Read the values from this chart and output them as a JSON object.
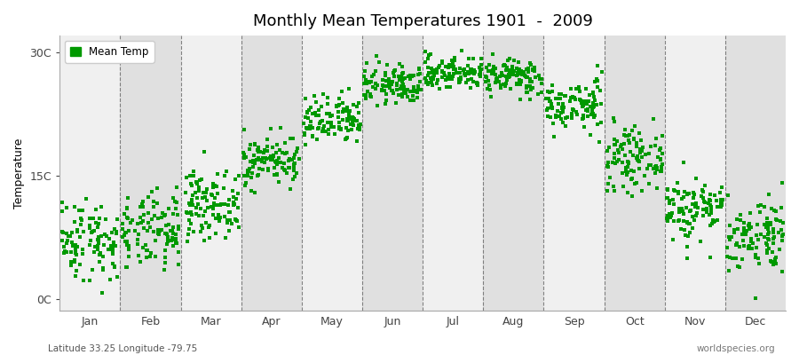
{
  "title": "Monthly Mean Temperatures 1901  -  2009",
  "ylabel": "Temperature",
  "dot_color": "#009900",
  "background_color": "#ffffff",
  "plot_bg_color_light": "#f0f0f0",
  "plot_bg_color_dark": "#e0e0e0",
  "ytick_labels": [
    "0C",
    "15C",
    "30C"
  ],
  "ytick_values": [
    0,
    15,
    30
  ],
  "ylim": [
    -1.5,
    32
  ],
  "xlim": [
    0,
    12
  ],
  "months": [
    "Jan",
    "Feb",
    "Mar",
    "Apr",
    "May",
    "Jun",
    "Jul",
    "Aug",
    "Sep",
    "Oct",
    "Nov",
    "Dec"
  ],
  "dashed_line_x": [
    1,
    2,
    3,
    4,
    5,
    6,
    7,
    8,
    9,
    10,
    11
  ],
  "legend_label": "Mean Temp",
  "bottom_left_text": "Latitude 33.25 Longitude -79.75",
  "bottom_right_text": "worldspecies.org",
  "n_years": 109,
  "monthly_means": [
    7.2,
    8.0,
    11.5,
    16.8,
    21.5,
    26.0,
    27.5,
    27.0,
    23.5,
    17.0,
    11.0,
    7.8
  ],
  "monthly_stds": [
    2.5,
    2.3,
    2.0,
    1.5,
    1.5,
    1.2,
    1.0,
    1.1,
    1.5,
    1.8,
    2.0,
    2.3
  ],
  "seed": 42
}
